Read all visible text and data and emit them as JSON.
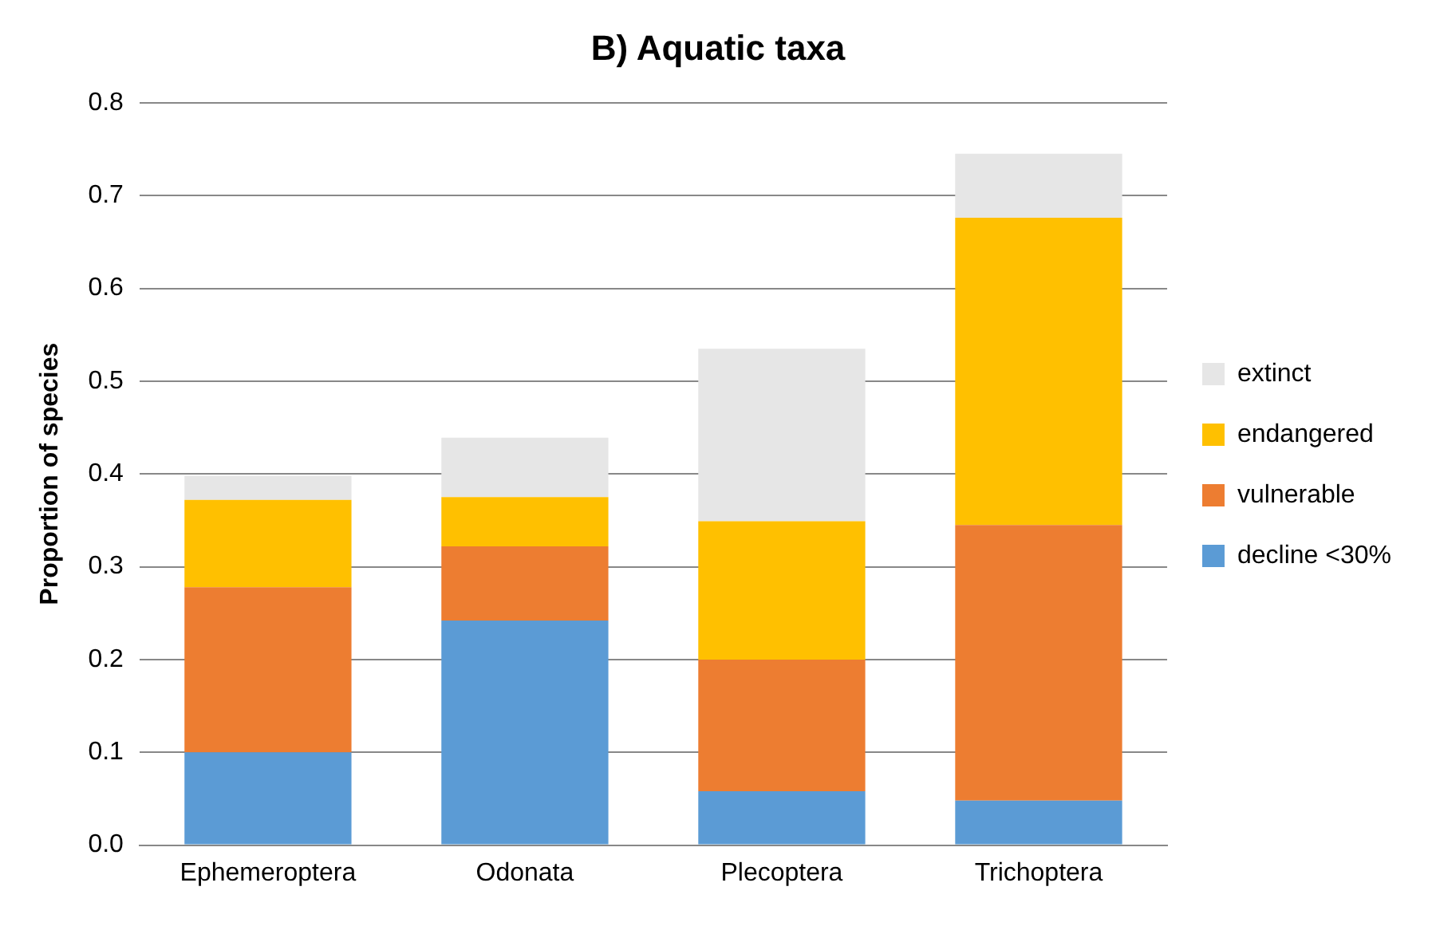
{
  "chart_data": {
    "type": "bar",
    "title": "B) Aquatic taxa",
    "ylabel": "Proportion of species",
    "categories": [
      "Ephemeroptera",
      "Odonata",
      "Plecoptera",
      "Trichoptera"
    ],
    "stacked": true,
    "series": [
      {
        "name": "decline <30%",
        "color": "#5b9bd5",
        "values": [
          0.1,
          0.242,
          0.058,
          0.048
        ]
      },
      {
        "name": "vulnerable",
        "color": "#ed7d31",
        "values": [
          0.178,
          0.08,
          0.142,
          0.297
        ]
      },
      {
        "name": "endangered",
        "color": "#ffc000",
        "values": [
          0.094,
          0.053,
          0.149,
          0.331
        ]
      },
      {
        "name": "extinct",
        "color": "#e6e6e6",
        "values": [
          0.026,
          0.064,
          0.186,
          0.069
        ]
      }
    ],
    "ylim": [
      0,
      0.8
    ],
    "yticks": [
      {
        "value": 0,
        "label": "0.0"
      },
      0.1,
      0.2,
      0.3,
      0.4,
      0.5,
      0.6,
      0.7,
      0.8
    ],
    "grid": "y",
    "legend": "right"
  }
}
